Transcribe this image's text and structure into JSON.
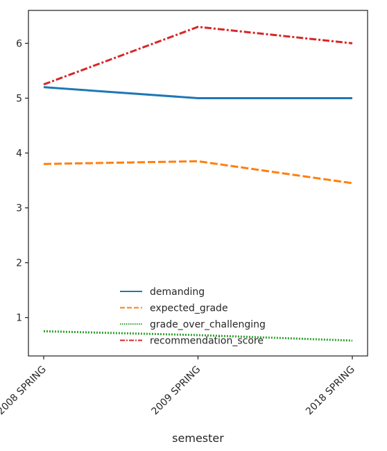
{
  "chart_data": {
    "type": "line",
    "title": "",
    "xlabel": "semester",
    "ylabel": "",
    "categories": [
      "2008 SPRING",
      "2009 SPRING",
      "2018 SPRING"
    ],
    "ylim": [
      0.3,
      6.6
    ],
    "yticks": [
      1,
      2,
      3,
      4,
      5,
      6
    ],
    "grid": false,
    "legend_position": "lower-center",
    "series": [
      {
        "name": "demanding",
        "values": [
          5.2,
          5.0,
          5.0
        ],
        "color": "#1f77b4",
        "dash": "solid"
      },
      {
        "name": "expected_grade",
        "values": [
          3.8,
          3.85,
          3.45
        ],
        "color": "#ff7f0e",
        "dash": "dashed"
      },
      {
        "name": "grade_over_challenging",
        "values": [
          0.75,
          0.68,
          0.58
        ],
        "color": "#2ca02c",
        "dash": "dotted"
      },
      {
        "name": "recommendation_score",
        "values": [
          5.25,
          6.3,
          6.0
        ],
        "color": "#d62728",
        "dash": "dashdot"
      }
    ]
  }
}
